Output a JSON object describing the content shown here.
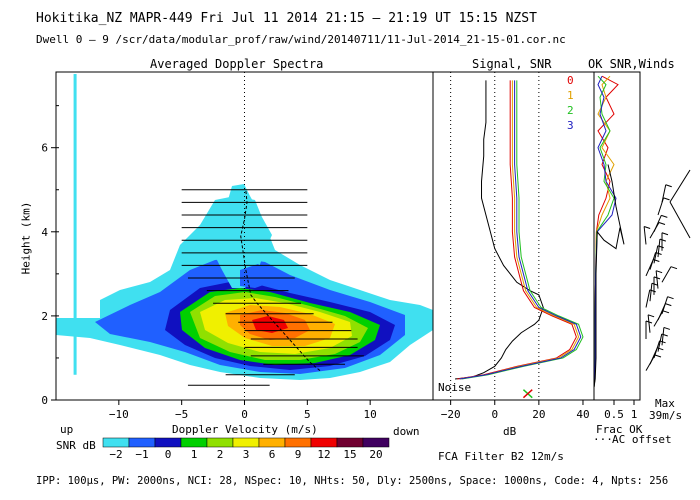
{
  "header": {
    "title": "Hokitika_NZ  MAPR-449  Fri Jul 11 2014 21:15 – 21:19 UT 15:15 NZST",
    "dwell": "Dwell  0 –  9   /scr/data/modular_prof/raw/wind/20140711/11-Jul-2014_21-15-01.cor.nc"
  },
  "footer": {
    "params": "IPP: 100μs,  PW: 2000ns,  NCI:  28,  NSpec: 10, NHts: 50,  Dly: 2500ns,  Space: 1000ns,  Code: 4,  Npts: 256",
    "filter": "FCA Filter B2 12m/s"
  },
  "colorbar": {
    "label": "SNR dB",
    "ticks": [
      "−2",
      "−1",
      "0",
      "1",
      "2",
      "3",
      "6",
      "9",
      "12",
      "15",
      "20"
    ],
    "colors": [
      "#40e0f0",
      "#2060ff",
      "#1010c0",
      "#00d000",
      "#90e000",
      "#f0f000",
      "#ffb000",
      "#ff7000",
      "#f00000",
      "#700030",
      "#400060"
    ]
  },
  "chart_data": [
    {
      "type": "heatmap",
      "title": "Averaged Doppler Spectra",
      "xlabel": "Doppler Velocity (m/s)",
      "ylabel": "Height (km)",
      "xlim": [
        -15,
        15
      ],
      "ylim": [
        0,
        7.8
      ],
      "xticks": [
        "−10",
        "−5",
        "0",
        "5",
        "10"
      ],
      "xtick_values": [
        -10,
        -5,
        0,
        5,
        10
      ],
      "yticks": [
        "0",
        "2",
        "4",
        "6"
      ],
      "ytick_values": [
        0,
        2,
        4,
        6
      ],
      "x_direction_labels": {
        "left": "up",
        "right": "down"
      },
      "mean_velocity_profile": {
        "height_km": [
          0.7,
          0.9,
          1.1,
          1.3,
          1.5,
          1.7,
          1.9,
          2.1,
          2.3,
          2.5,
          2.8,
          3.1,
          3.5,
          3.9,
          4.3,
          4.7,
          5.0
        ],
        "velocity_ms": [
          6.0,
          5.2,
          4.6,
          4.0,
          3.4,
          2.8,
          2.2,
          1.6,
          1.0,
          0.5,
          0.3,
          0.1,
          -0.1,
          -0.3,
          0.0,
          0.2,
          0.1
        ]
      },
      "spectral_width_bars": {
        "height_km": [
          0.35,
          0.6,
          0.85,
          1.05,
          1.25,
          1.45,
          1.65,
          1.85,
          2.05,
          2.3,
          2.6,
          2.9,
          3.2,
          3.5,
          3.8,
          4.1,
          4.4,
          4.7,
          5.0
        ],
        "left_ms": [
          -4.5,
          -1.5,
          1.5,
          0.5,
          0.0,
          0.5,
          0.0,
          -0.5,
          -1.5,
          -2.5,
          -3.0,
          -4.5,
          -5.0,
          -5.0,
          -5.0,
          -5.0,
          -5.0,
          -5.0,
          -5.0
        ],
        "right_ms": [
          2.0,
          4.0,
          8.0,
          9.5,
          9.0,
          9.0,
          8.5,
          7.0,
          5.5,
          4.5,
          3.5,
          4.0,
          5.0,
          5.0,
          5.0,
          5.0,
          5.0,
          5.0,
          5.0
        ]
      }
    },
    {
      "type": "line",
      "title": "Signal, SNR",
      "xlabel": "dB",
      "xlim": [
        -28,
        45
      ],
      "ylim": [
        0,
        7.8
      ],
      "xticks": [
        "−20",
        "0",
        "20",
        "40"
      ],
      "xtick_values": [
        -20,
        0,
        20,
        40
      ],
      "dashed_reference_lines_db": [
        -20,
        0,
        20
      ],
      "noise_label": "Noise",
      "series": [
        {
          "name": "Signal",
          "color": "#000000",
          "x": [
            -18,
            -10,
            -5,
            0,
            3,
            5,
            8,
            12,
            15,
            18,
            20,
            22,
            20,
            16,
            10,
            4,
            0,
            -2,
            -4,
            -6,
            -6,
            -5,
            -5,
            -4,
            -4,
            -4,
            -4
          ],
          "y": [
            0.5,
            0.55,
            0.65,
            0.8,
            1.0,
            1.2,
            1.4,
            1.6,
            1.7,
            1.8,
            1.9,
            2.2,
            2.5,
            2.6,
            2.8,
            3.2,
            3.6,
            4.0,
            4.4,
            4.8,
            5.2,
            5.8,
            6.2,
            6.6,
            7.0,
            7.3,
            7.6
          ]
        },
        {
          "name": "SNR 0",
          "color": "#e00000",
          "x": [
            -17,
            -5,
            10,
            28,
            34,
            37,
            35,
            26,
            18,
            13,
            11,
            9,
            8,
            8,
            7,
            7,
            7,
            7
          ],
          "y": [
            0.5,
            0.6,
            0.8,
            1.0,
            1.2,
            1.5,
            1.8,
            2.0,
            2.2,
            2.6,
            3.0,
            3.4,
            4.0,
            4.8,
            5.6,
            6.4,
            7.0,
            7.6
          ]
        },
        {
          "name": "SNR 1",
          "color": "#e0a000",
          "x": [
            -16,
            -4,
            11,
            29,
            35,
            38,
            36,
            27,
            19,
            14,
            12,
            10,
            9,
            9,
            8,
            8,
            8,
            8
          ],
          "y": [
            0.5,
            0.6,
            0.8,
            1.0,
            1.2,
            1.5,
            1.8,
            2.0,
            2.2,
            2.6,
            3.0,
            3.4,
            4.0,
            4.8,
            5.6,
            6.4,
            7.0,
            7.6
          ]
        },
        {
          "name": "SNR 2",
          "color": "#20c020",
          "x": [
            -15,
            -3,
            13,
            31,
            37,
            40,
            38,
            29,
            21,
            16,
            14,
            12,
            11,
            11,
            10,
            10,
            10,
            10
          ],
          "y": [
            0.5,
            0.6,
            0.8,
            1.0,
            1.2,
            1.5,
            1.8,
            2.0,
            2.2,
            2.6,
            3.0,
            3.4,
            4.0,
            4.8,
            5.6,
            6.4,
            7.0,
            7.6
          ]
        },
        {
          "name": "SNR 3",
          "color": "#2020c0",
          "x": [
            -16,
            -4,
            12,
            30,
            36,
            39,
            37,
            28,
            20,
            15,
            13,
            11,
            10,
            10,
            9,
            9,
            9,
            9
          ],
          "y": [
            0.5,
            0.6,
            0.8,
            1.0,
            1.2,
            1.5,
            1.8,
            2.0,
            2.2,
            2.6,
            3.0,
            3.4,
            4.0,
            4.8,
            5.6,
            6.4,
            7.0,
            7.6
          ]
        }
      ]
    },
    {
      "type": "line",
      "title": "OK SNR,Winds",
      "xlabel": "Frac OK",
      "xlim": [
        0,
        1.15
      ],
      "ylim": [
        0,
        7.8
      ],
      "xticks": [
        "0.5",
        "1"
      ],
      "xtick_values": [
        0.5,
        1
      ],
      "beam_labels": [
        "0",
        "1",
        "2",
        "3"
      ],
      "beam_colors": [
        "#e00000",
        "#e0a000",
        "#20c020",
        "#2020c0"
      ],
      "legend": [
        "Frac OK",
        "AC offset"
      ],
      "max_wind_label": "Max",
      "max_wind_value": "39m/s",
      "frac_ok_series": [
        {
          "name": "beam 0",
          "color": "#e00000",
          "x": [
            0.0,
            0.02,
            0.03,
            0.03,
            0.04,
            0.06,
            0.12,
            0.3,
            0.4,
            0.2,
            0.35,
            0.1,
            0.5,
            0.3,
            0.6,
            0.2
          ],
          "y": [
            0.3,
            0.5,
            1.0,
            2.0,
            3.0,
            4.0,
            4.4,
            4.8,
            5.2,
            5.6,
            6.0,
            6.4,
            6.8,
            7.2,
            7.5,
            7.7
          ]
        },
        {
          "name": "beam 1",
          "color": "#e0a000",
          "x": [
            0.0,
            0.02,
            0.03,
            0.03,
            0.04,
            0.06,
            0.2,
            0.4,
            0.3,
            0.5,
            0.2,
            0.4,
            0.1,
            0.3,
            0.2,
            0.4
          ],
          "y": [
            0.3,
            0.5,
            1.0,
            2.0,
            3.0,
            4.0,
            4.4,
            4.8,
            5.2,
            5.6,
            6.0,
            6.4,
            6.8,
            7.2,
            7.5,
            7.7
          ]
        },
        {
          "name": "beam 2",
          "color": "#20c020",
          "x": [
            0.0,
            0.02,
            0.03,
            0.03,
            0.04,
            0.07,
            0.35,
            0.5,
            0.25,
            0.3,
            0.15,
            0.4,
            0.2,
            0.15,
            0.3,
            0.1
          ],
          "y": [
            0.3,
            0.5,
            1.0,
            2.0,
            3.0,
            4.0,
            4.4,
            4.8,
            5.2,
            5.6,
            6.0,
            6.4,
            6.8,
            7.2,
            7.5,
            7.7
          ]
        },
        {
          "name": "beam 3",
          "color": "#2020c0",
          "x": [
            0.0,
            0.02,
            0.03,
            0.03,
            0.04,
            0.08,
            0.45,
            0.55,
            0.3,
            0.25,
            0.1,
            0.3,
            0.15,
            0.25,
            0.1,
            0.2
          ],
          "y": [
            0.3,
            0.5,
            1.0,
            2.0,
            3.0,
            4.0,
            4.4,
            4.8,
            5.2,
            5.6,
            6.0,
            6.4,
            6.8,
            7.2,
            7.5,
            7.7
          ]
        }
      ],
      "ac_offset": {
        "x": [
          0.0,
          0.03,
          0.05,
          0.05,
          0.05,
          0.08,
          0.25,
          0.55,
          0.65,
          0.75,
          0.55,
          0.45,
          0.35
        ],
        "y": [
          0.3,
          0.5,
          1.0,
          2.0,
          3.0,
          4.0,
          3.8,
          3.6,
          4.1,
          3.7,
          4.6,
          5.2,
          5.6
        ]
      },
      "wind_barb_heights_km": [
        0.7,
        0.85,
        1.0,
        1.15,
        1.3,
        1.45,
        1.6,
        1.75,
        1.9,
        2.05,
        2.2,
        2.35,
        2.5,
        2.65,
        2.8,
        2.95,
        3.1,
        3.25,
        3.4,
        3.55,
        3.7,
        3.85,
        4.0,
        4.4,
        4.7
      ]
    }
  ]
}
